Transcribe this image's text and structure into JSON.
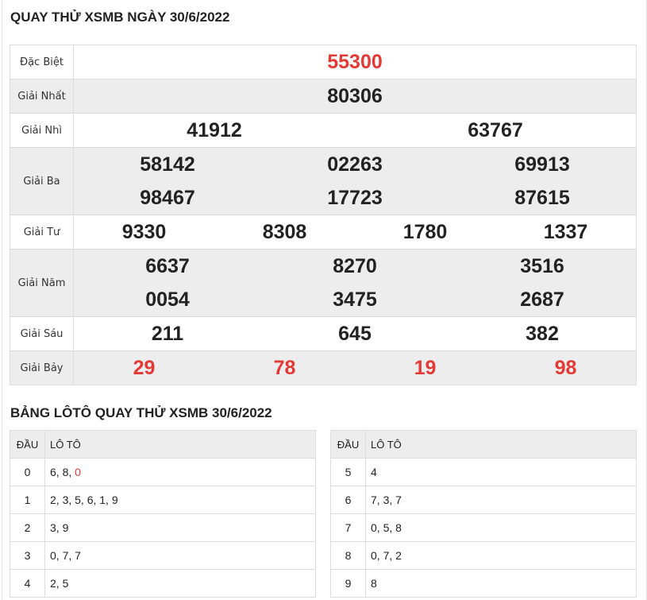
{
  "title": "QUAY THỬ XSMB NGÀY 30/6/2022",
  "colors": {
    "highlight": "#e53935",
    "row_alt": "#ededed"
  },
  "prizes": [
    {
      "label": "Đặc Biệt",
      "lines": [
        [
          "55300"
        ]
      ],
      "red": true
    },
    {
      "label": "Giải Nhất",
      "lines": [
        [
          "80306"
        ]
      ]
    },
    {
      "label": "Giải Nhì",
      "lines": [
        [
          "41912",
          "63767"
        ]
      ]
    },
    {
      "label": "Giải Ba",
      "lines": [
        [
          "58142",
          "02263",
          "69913"
        ],
        [
          "98467",
          "17723",
          "87615"
        ]
      ]
    },
    {
      "label": "Giải Tư",
      "lines": [
        [
          "9330",
          "8308",
          "1780",
          "1337"
        ]
      ]
    },
    {
      "label": "Giải Năm",
      "lines": [
        [
          "6637",
          "8270",
          "3516"
        ],
        [
          "0054",
          "3475",
          "2687"
        ]
      ]
    },
    {
      "label": "Giải Sáu",
      "lines": [
        [
          "211",
          "645",
          "382"
        ]
      ]
    },
    {
      "label": "Giải Bảy",
      "lines": [
        [
          "29",
          "78",
          "19",
          "98"
        ]
      ],
      "red": true
    }
  ],
  "loto_title": "BẢNG LÔTÔ QUAY THỬ XSMB 30/6/2022",
  "loto_headers": {
    "dau": "ĐẦU",
    "loto": "LÔ TÔ"
  },
  "loto_left": [
    {
      "dau": "0",
      "loto": "6, 8, ",
      "loto_red": "0"
    },
    {
      "dau": "1",
      "loto": "2, 3, 5, 6, 1, 9"
    },
    {
      "dau": "2",
      "loto": "3, 9"
    },
    {
      "dau": "3",
      "loto": "0, 7, 7"
    },
    {
      "dau": "4",
      "loto": "2, 5"
    }
  ],
  "loto_right": [
    {
      "dau": "5",
      "loto": "4"
    },
    {
      "dau": "6",
      "loto": "7, 3, 7"
    },
    {
      "dau": "7",
      "loto": "0, 5, 8"
    },
    {
      "dau": "8",
      "loto": "0, 7, 2"
    },
    {
      "dau": "9",
      "loto": "8"
    }
  ]
}
